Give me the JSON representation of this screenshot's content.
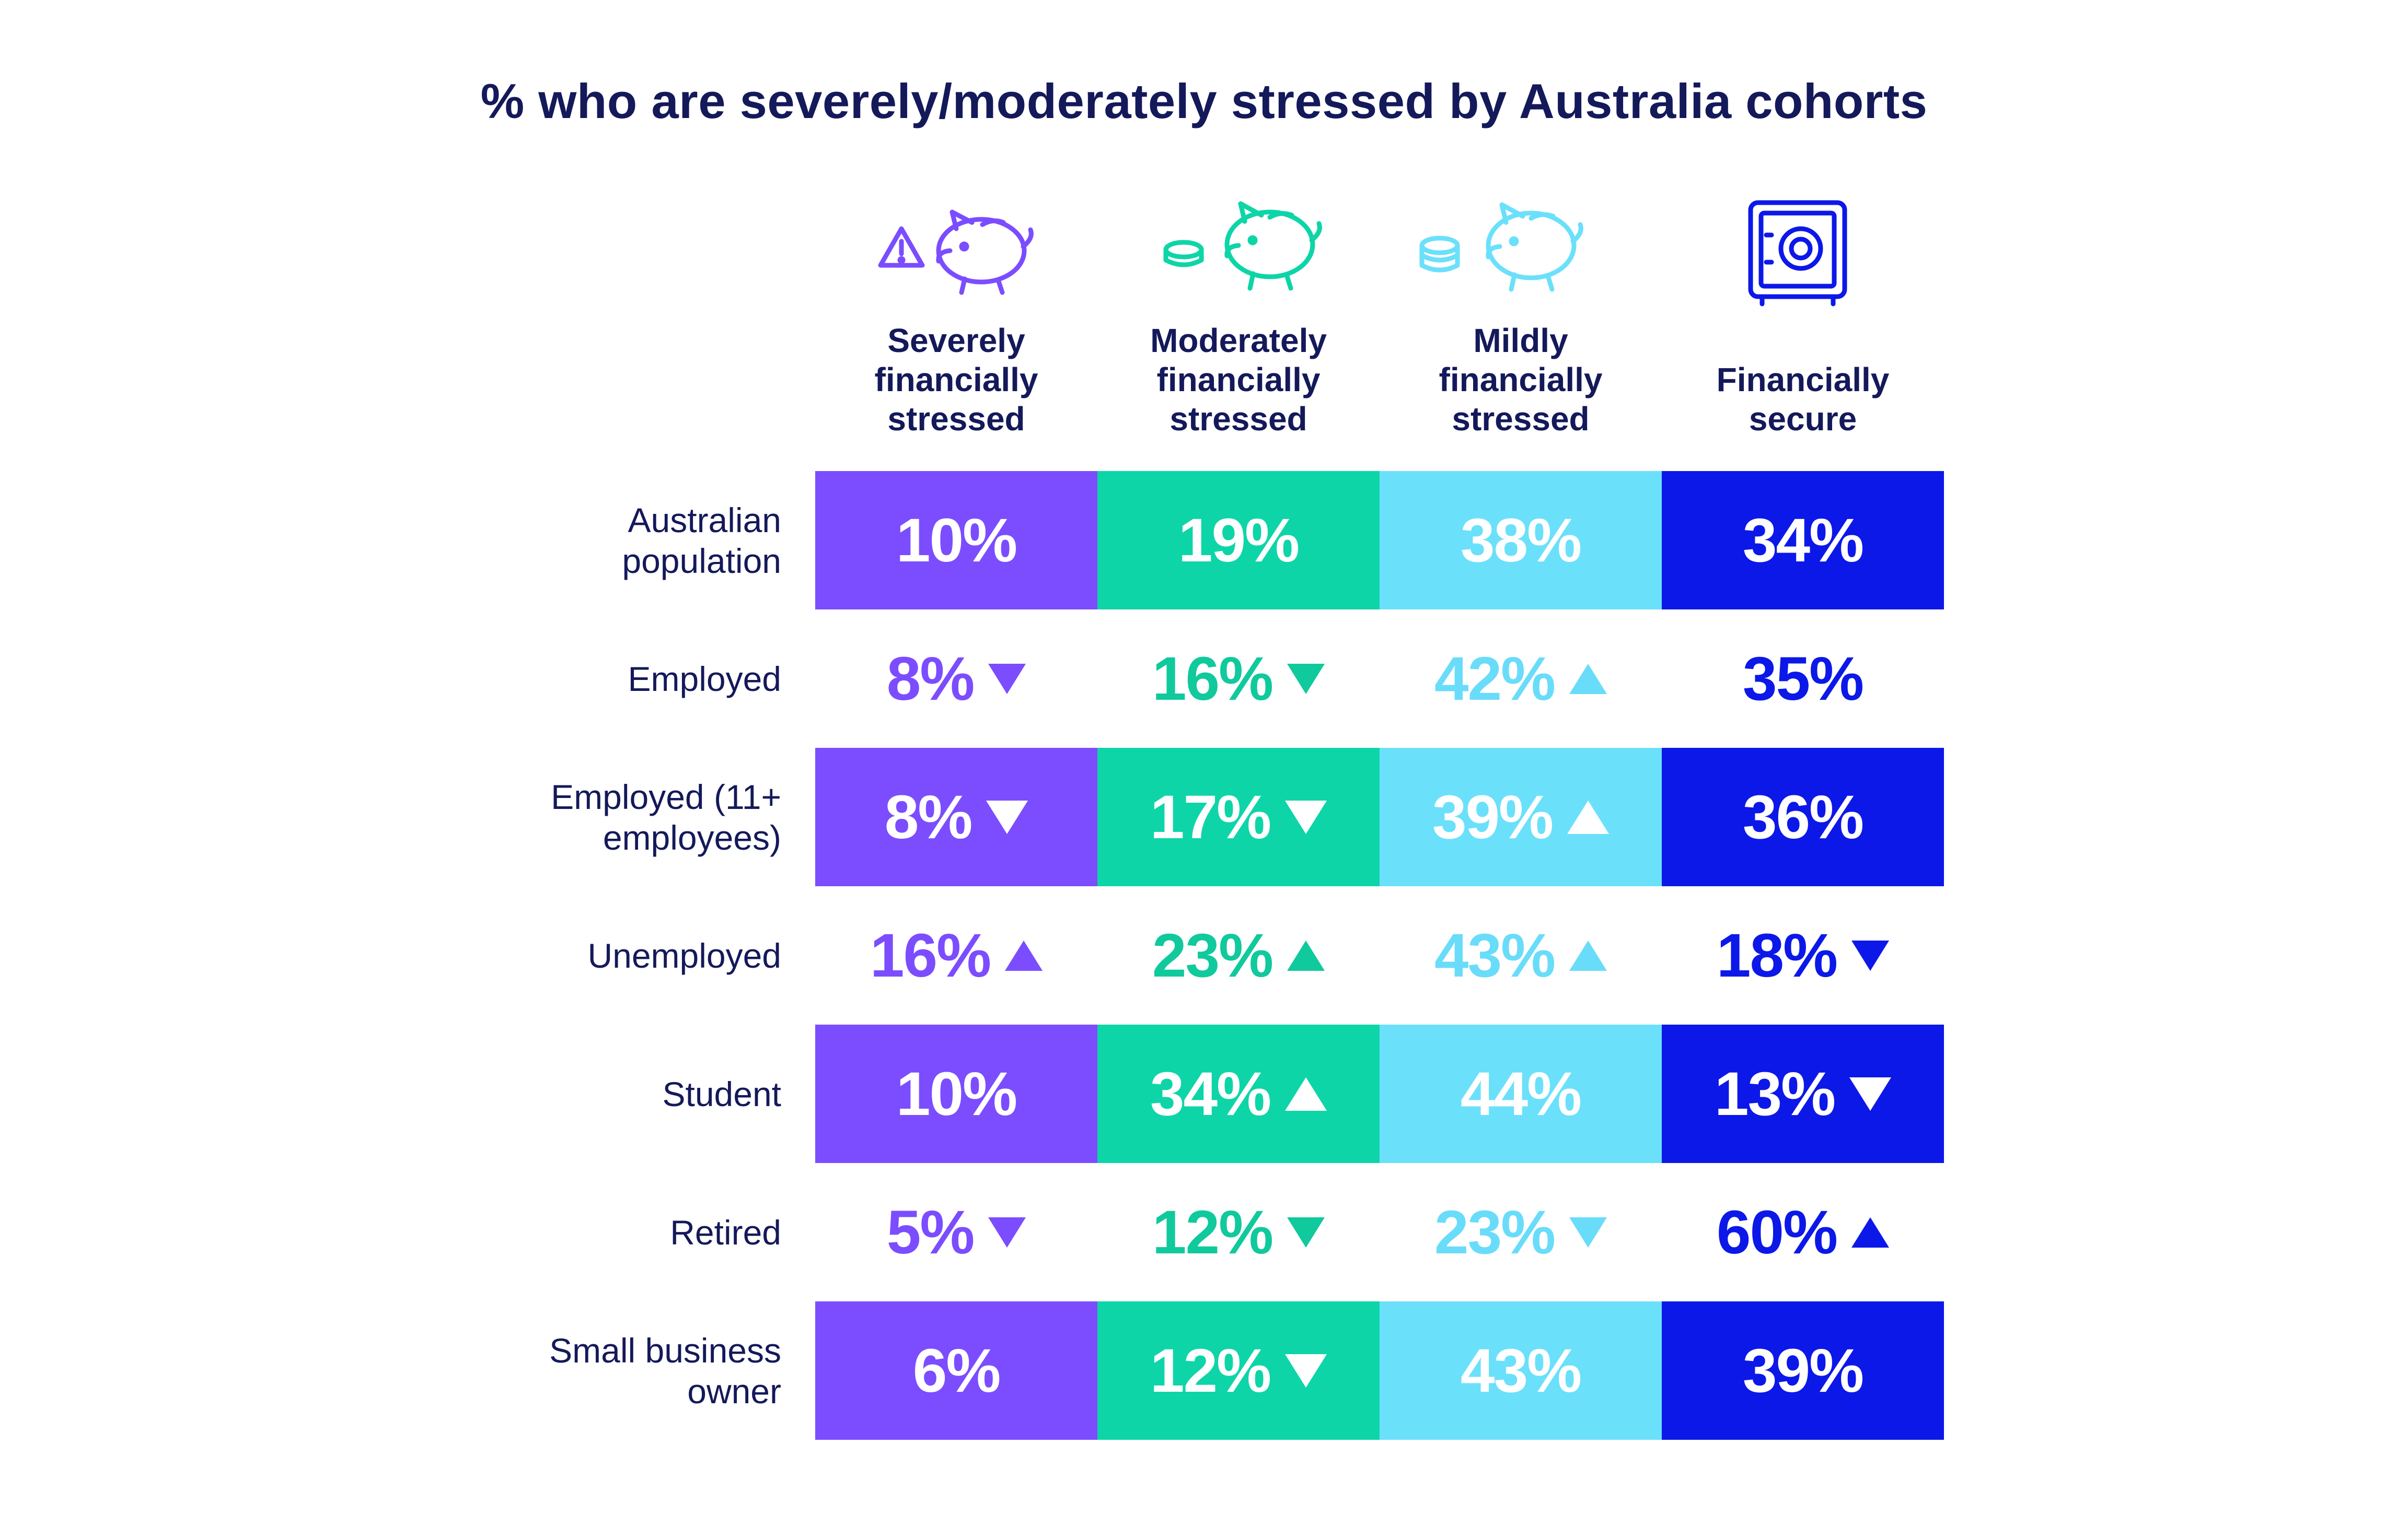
{
  "chart_data": {
    "type": "table",
    "title": "% who are severely/moderately stressed by Australia cohorts",
    "columns": [
      {
        "label": "Severely\nfinancially\nstressed",
        "icon": "warning-piggy-bank-icon",
        "color": "#7b4dff",
        "text_color": "#7b4dff"
      },
      {
        "label": "Moderately\nfinancially\nstressed",
        "icon": "coins-piggy-bank-icon",
        "color": "#0dd5a8",
        "text_color": "#10c99c"
      },
      {
        "label": "Mildly\nfinancially\nstressed",
        "icon": "coin-piggy-bank-icon",
        "color": "#6be0fb",
        "text_color": "#69dcfa"
      },
      {
        "label": "Financially\nsecure",
        "icon": "safe-icon",
        "color": "#0c18e8",
        "text_color": "#0c18e8"
      }
    ],
    "rows": [
      {
        "label": "Australian\npopulation",
        "shaded": true,
        "values": [
          10,
          19,
          38,
          34
        ],
        "display": [
          "10%",
          "19%",
          "38%",
          "34%"
        ],
        "trend": [
          "",
          "",
          "",
          ""
        ]
      },
      {
        "label": "Employed",
        "shaded": false,
        "values": [
          8,
          16,
          42,
          35
        ],
        "display": [
          "8%",
          "16%",
          "42%",
          "35%"
        ],
        "trend": [
          "down",
          "down",
          "up",
          ""
        ]
      },
      {
        "label": "Employed (11+\nemployees)",
        "shaded": true,
        "values": [
          8,
          17,
          39,
          36
        ],
        "display": [
          "8%",
          "17%",
          "39%",
          "36%"
        ],
        "trend": [
          "down",
          "down",
          "up",
          ""
        ]
      },
      {
        "label": "Unemployed",
        "shaded": false,
        "values": [
          16,
          23,
          43,
          18
        ],
        "display": [
          "16%",
          "23%",
          "43%",
          "18%"
        ],
        "trend": [
          "up",
          "up",
          "up",
          "down"
        ]
      },
      {
        "label": "Student",
        "shaded": true,
        "values": [
          10,
          34,
          44,
          13
        ],
        "display": [
          "10%",
          "34%",
          "44%",
          "13%"
        ],
        "trend": [
          "",
          "up",
          "",
          "down"
        ]
      },
      {
        "label": "Retired",
        "shaded": false,
        "values": [
          5,
          12,
          23,
          60
        ],
        "display": [
          "5%",
          "12%",
          "23%",
          "60%"
        ],
        "trend": [
          "down",
          "down",
          "down",
          "up"
        ]
      },
      {
        "label": "Small business\nowner",
        "shaded": true,
        "values": [
          6,
          12,
          43,
          39
        ],
        "display": [
          "6%",
          "12%",
          "43%",
          "39%"
        ],
        "trend": [
          "",
          "down",
          "",
          ""
        ]
      }
    ]
  }
}
